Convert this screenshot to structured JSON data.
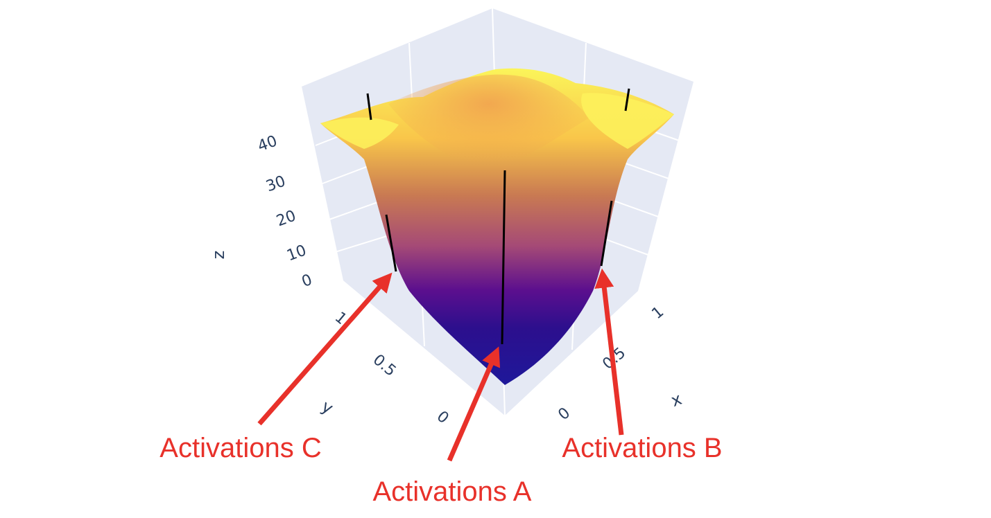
{
  "chart_data": {
    "type": "surface3d",
    "title": "",
    "axes": {
      "x": {
        "label": "x",
        "ticks": [
          "0",
          "0.5",
          "1"
        ],
        "range": [
          0,
          1
        ]
      },
      "y": {
        "label": "y",
        "ticks": [
          "0",
          "0.5",
          "1"
        ],
        "range": [
          0,
          1
        ]
      },
      "z": {
        "label": "z",
        "ticks": [
          "0",
          "10",
          "20",
          "30",
          "40"
        ],
        "range": [
          0,
          45
        ]
      }
    },
    "grid": true,
    "colorscale": "plasma",
    "colorscale_stops": [
      "#0d0887",
      "#6a00a8",
      "#b12a90",
      "#e16462",
      "#fca636",
      "#f0f921"
    ],
    "annotation_color": "#e8312a",
    "annotations": [
      {
        "label": "Activations A"
      },
      {
        "label": "Activations B"
      },
      {
        "label": "Activations C"
      }
    ]
  }
}
